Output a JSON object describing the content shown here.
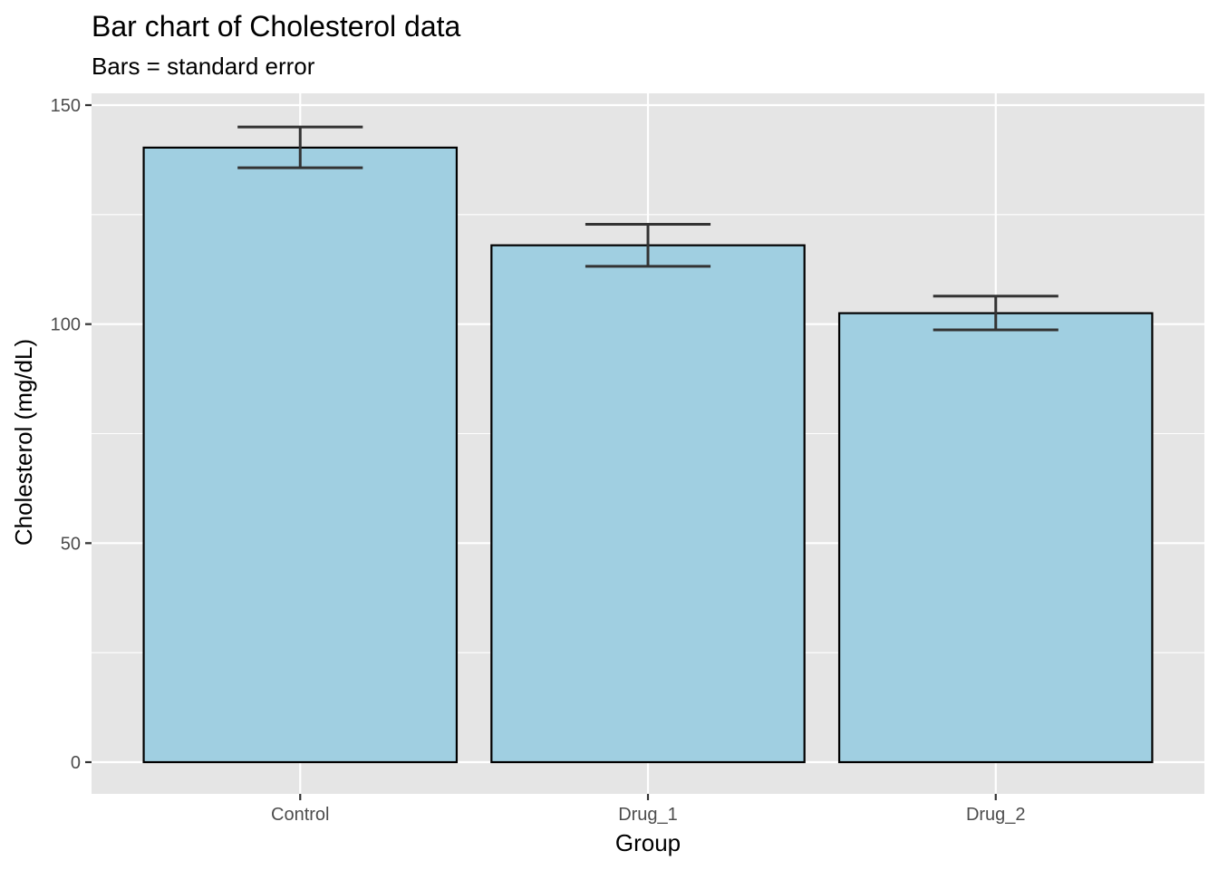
{
  "chart_data": {
    "type": "bar",
    "title": "Bar chart of Cholesterol data",
    "subtitle": "Bars = standard error",
    "xlabel": "Group",
    "ylabel": "Cholesterol (mg/dL)",
    "categories": [
      "Control",
      "Drug_1",
      "Drug_2"
    ],
    "values": [
      140.3,
      118.0,
      102.5
    ],
    "error_bars": {
      "lower": [
        135.7,
        113.2,
        98.7
      ],
      "upper": [
        145.0,
        122.8,
        106.4
      ]
    },
    "ylim": [
      -7,
      152
    ],
    "yticks": [
      0,
      50,
      100,
      150
    ],
    "ytick_labels": [
      "0",
      "50",
      "100",
      "150"
    ],
    "grid": true,
    "legend": "none",
    "colors": {
      "panel_background": "#e5e5e5",
      "grid_line": "#ffffff",
      "bar_fill": "#a0cfe1",
      "bar_outline": "#000000",
      "error_bar": "#333333",
      "tick_label": "#4d4d4d",
      "axis_tick": "#333333"
    }
  }
}
